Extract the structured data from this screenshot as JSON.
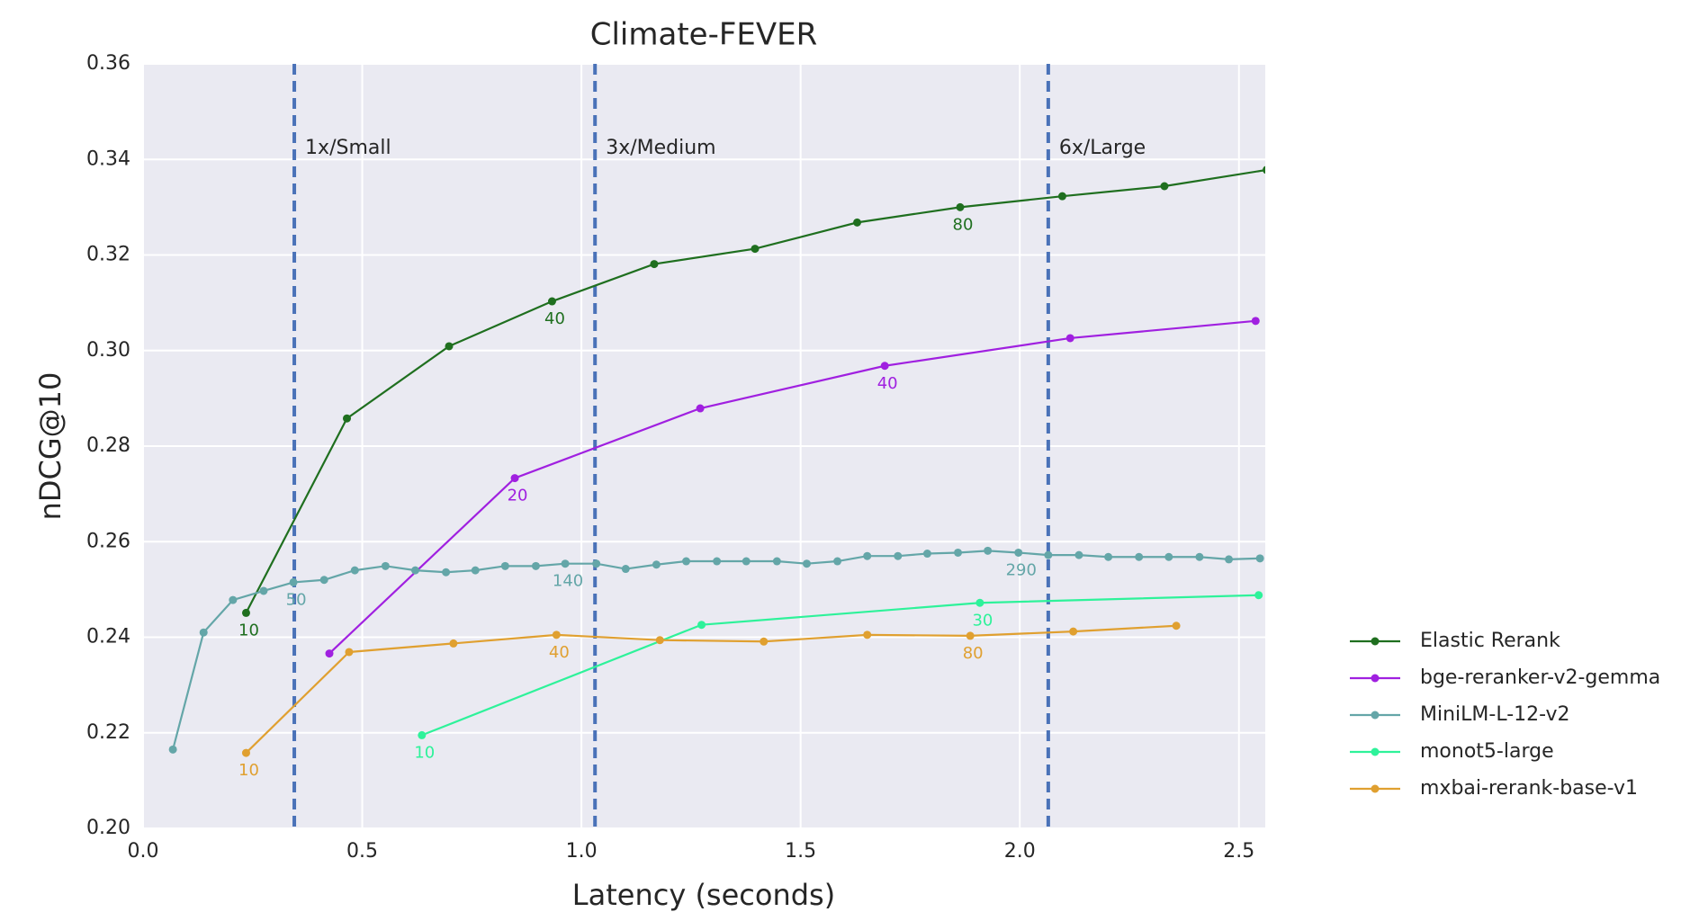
{
  "chart_data": {
    "type": "line",
    "title": "Climate-FEVER",
    "xlabel": "Latency (seconds)",
    "ylabel": "nDCG@10",
    "xlim": [
      0,
      2.56
    ],
    "ylim": [
      0.2,
      0.36
    ],
    "xticks": [
      {
        "value": 0,
        "label": "0.0"
      },
      0.5,
      {
        "value": 1,
        "label": "1.0"
      },
      1.5,
      {
        "value": 2,
        "label": "2.0"
      },
      2.5
    ],
    "yticks": [
      {
        "value": 0.2,
        "label": "0.20"
      },
      0.22,
      0.24,
      0.26,
      0.28,
      {
        "value": 0.3,
        "label": "0.30"
      },
      0.32,
      0.34,
      0.36
    ],
    "grid": true,
    "legend": "lower right outside",
    "vlines": [
      {
        "x": 0.345,
        "label": "1x/Small"
      },
      {
        "x": 1.031,
        "label": "3x/Medium"
      },
      {
        "x": 2.065,
        "label": "6x/Large"
      }
    ],
    "series": [
      {
        "name": "Elastic Rerank",
        "color": "#1f6f1f",
        "x": [
          0.235,
          0.465,
          0.698,
          0.933,
          1.166,
          1.396,
          1.629,
          1.864,
          2.097,
          2.33,
          2.563
        ],
        "values": [
          0.2451,
          0.2858,
          0.3009,
          0.3103,
          0.3181,
          0.3213,
          0.3268,
          0.33,
          0.3323,
          0.3344,
          0.3378
        ],
        "point_labels": [
          "10",
          null,
          null,
          "40",
          null,
          null,
          null,
          "80",
          null,
          null,
          null
        ]
      },
      {
        "name": "bge-reranker-v2-gemma",
        "color": "#a020e0",
        "x": [
          0.425,
          0.848,
          1.271,
          1.692,
          2.115,
          2.538
        ],
        "values": [
          0.2366,
          0.2733,
          0.2879,
          0.2968,
          0.3026,
          0.3062
        ],
        "point_labels": [
          null,
          "20",
          null,
          "40",
          null,
          null
        ]
      },
      {
        "name": "MiniLM-L-12-v2",
        "color": "#64a6a8",
        "x": [
          0.068,
          0.138,
          0.205,
          0.275,
          0.343,
          0.413,
          0.483,
          0.553,
          0.621,
          0.691,
          0.758,
          0.826,
          0.896,
          0.963,
          1.034,
          1.101,
          1.171,
          1.239,
          1.309,
          1.376,
          1.446,
          1.514,
          1.584,
          1.652,
          1.722,
          1.789,
          1.859,
          1.927,
          1.997,
          2.065,
          2.135,
          2.202,
          2.272,
          2.34,
          2.41,
          2.477,
          2.548
        ],
        "values": [
          0.2165,
          0.241,
          0.2478,
          0.2497,
          0.2515,
          0.252,
          0.254,
          0.2549,
          0.254,
          0.2536,
          0.254,
          0.2549,
          0.2549,
          0.2554,
          0.2554,
          0.2543,
          0.2552,
          0.2559,
          0.2559,
          0.2559,
          0.2559,
          0.2554,
          0.2559,
          0.257,
          0.257,
          0.2575,
          0.2577,
          0.2581,
          0.2577,
          0.2572,
          0.2572,
          0.2568,
          0.2568,
          0.2568,
          0.2568,
          0.2563,
          0.2565
        ],
        "point_labels": [
          null,
          null,
          null,
          null,
          "50",
          null,
          null,
          null,
          null,
          null,
          null,
          null,
          null,
          "140",
          null,
          null,
          null,
          null,
          null,
          null,
          null,
          null,
          null,
          null,
          null,
          null,
          null,
          null,
          "290",
          null,
          null,
          null,
          null,
          null,
          null,
          null,
          null
        ]
      },
      {
        "name": "monot5-large",
        "color": "#2ef29a",
        "x": [
          0.636,
          1.274,
          1.909,
          2.545
        ],
        "values": [
          0.2195,
          0.2426,
          0.2472,
          0.2488
        ],
        "point_labels": [
          "10",
          null,
          "30",
          null
        ]
      },
      {
        "name": "mxbai-rerank-base-v1",
        "color": "#e0a030",
        "x": [
          0.235,
          0.47,
          0.708,
          0.943,
          1.179,
          1.416,
          1.652,
          1.887,
          2.122,
          2.357
        ],
        "values": [
          0.2158,
          0.2369,
          0.2387,
          0.2405,
          0.2394,
          0.2391,
          0.2405,
          0.2403,
          0.2412,
          0.2424
        ],
        "point_labels": [
          "10",
          null,
          null,
          "40",
          null,
          null,
          null,
          "80",
          null,
          null
        ]
      }
    ]
  }
}
